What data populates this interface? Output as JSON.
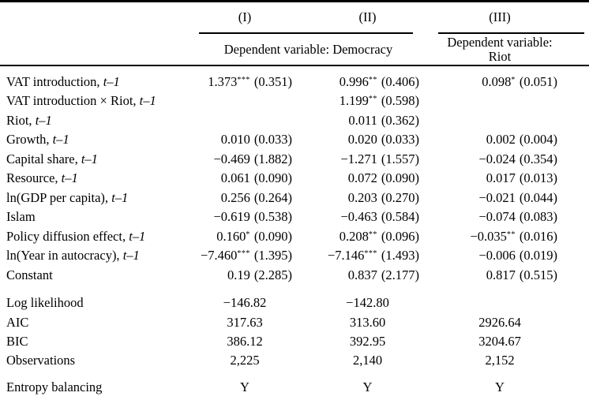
{
  "table": {
    "col_headers": [
      "(I)",
      "(II)",
      "(III)"
    ],
    "dep_var_democracy": "Dependent variable: Democracy",
    "dep_var_riot": "Dependent variable: Riot",
    "rows": [
      {
        "label": "VAT introduction, ",
        "label_it": "t–1",
        "cells": [
          {
            "coef": "1.373",
            "stars": "***",
            "se": "(0.351)"
          },
          {
            "coef": "0.996",
            "stars": "**",
            "se": "(0.406)"
          },
          {
            "coef": "0.098",
            "stars": "*",
            "se": "(0.051)"
          }
        ]
      },
      {
        "label": "VAT introduction × Riot, ",
        "label_it": "t–1",
        "cells": [
          null,
          {
            "coef": "1.199",
            "stars": "**",
            "se": "(0.598)"
          },
          null
        ]
      },
      {
        "label": "Riot, ",
        "label_it": "t–1",
        "cells": [
          null,
          {
            "coef": "0.011",
            "stars": "",
            "se": "(0.362)"
          },
          null
        ]
      },
      {
        "label": "Growth, ",
        "label_it": "t–1",
        "cells": [
          {
            "coef": "0.010",
            "stars": "",
            "se": "(0.033)"
          },
          {
            "coef": "0.020",
            "stars": "",
            "se": "(0.033)"
          },
          {
            "coef": "0.002",
            "stars": "",
            "se": "(0.004)"
          }
        ]
      },
      {
        "label": "Capital share, ",
        "label_it": "t–1",
        "cells": [
          {
            "coef": "−0.469",
            "stars": "",
            "se": "(1.882)"
          },
          {
            "coef": "−1.271",
            "stars": "",
            "se": "(1.557)"
          },
          {
            "coef": "−0.024",
            "stars": "",
            "se": "(0.354)"
          }
        ]
      },
      {
        "label": "Resource, ",
        "label_it": "t–1",
        "cells": [
          {
            "coef": "0.061",
            "stars": "",
            "se": "(0.090)"
          },
          {
            "coef": "0.072",
            "stars": "",
            "se": "(0.090)"
          },
          {
            "coef": "0.017",
            "stars": "",
            "se": "(0.013)"
          }
        ]
      },
      {
        "label": "ln(GDP per capita), ",
        "label_it": "t–1",
        "cells": [
          {
            "coef": "0.256",
            "stars": "",
            "se": "(0.264)"
          },
          {
            "coef": "0.203",
            "stars": "",
            "se": "(0.270)"
          },
          {
            "coef": "−0.021",
            "stars": "",
            "se": "(0.044)"
          }
        ]
      },
      {
        "label": "Islam",
        "label_it": "",
        "cells": [
          {
            "coef": "−0.619",
            "stars": "",
            "se": "(0.538)"
          },
          {
            "coef": "−0.463",
            "stars": "",
            "se": "(0.584)"
          },
          {
            "coef": "−0.074",
            "stars": "",
            "se": "(0.083)"
          }
        ]
      },
      {
        "label": "Policy diffusion effect, ",
        "label_it": "t–1",
        "cells": [
          {
            "coef": "0.160",
            "stars": "*",
            "se": "(0.090)"
          },
          {
            "coef": "0.208",
            "stars": "**",
            "se": "(0.096)"
          },
          {
            "coef": "−0.035",
            "stars": "**",
            "se": "(0.016)"
          }
        ]
      },
      {
        "label": "ln(Year in autocracy), ",
        "label_it": "t–1",
        "cells": [
          {
            "coef": "−7.460",
            "stars": "***",
            "se": "(1.395)"
          },
          {
            "coef": "−7.146",
            "stars": "***",
            "se": "(1.493)"
          },
          {
            "coef": "−0.006",
            "stars": "",
            "se": "(0.019)"
          }
        ]
      },
      {
        "label": "Constant",
        "label_it": "",
        "cells": [
          {
            "coef": "0.19",
            "stars": "",
            "se": "(2.285)"
          },
          {
            "coef": "0.837",
            "stars": "",
            "se": "(2.177)"
          },
          {
            "coef": "0.817",
            "stars": "",
            "se": "(0.515)"
          }
        ]
      }
    ],
    "stats": [
      {
        "label": "Log likelihood",
        "values": [
          "−146.82",
          "−142.80",
          ""
        ]
      },
      {
        "label": "AIC",
        "values": [
          "317.63",
          "313.60",
          "2926.64"
        ]
      },
      {
        "label": "BIC",
        "values": [
          "386.12",
          "392.95",
          "3204.67"
        ]
      },
      {
        "label": "Observations",
        "values": [
          "2,225",
          "2,140",
          "2,152"
        ]
      },
      {
        "label": "Entropy balancing",
        "values": [
          "Y",
          "Y",
          "Y"
        ]
      }
    ]
  }
}
